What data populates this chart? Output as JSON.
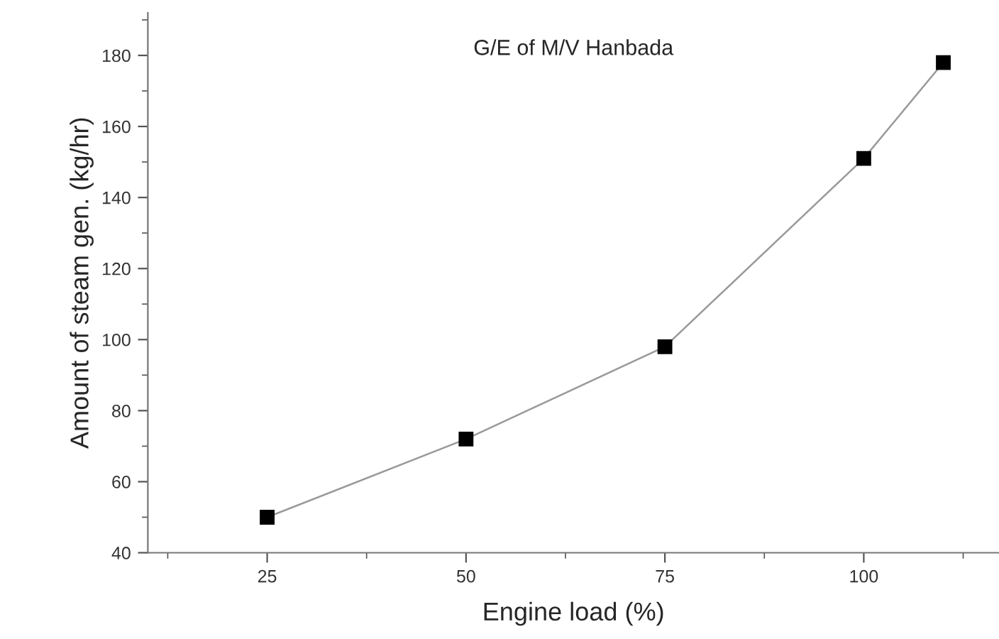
{
  "chart_data": {
    "type": "line",
    "title": "G/E of M/V Hanbada",
    "xlabel": "Engine load (%)",
    "ylabel": "Amount of steam gen. (kg/hr)",
    "x": [
      25,
      50,
      75,
      100,
      110
    ],
    "series": [
      {
        "color": "#000000",
        "values": [
          50,
          72,
          98,
          151,
          178
        ]
      }
    ],
    "marker": "square",
    "line_style": "solid",
    "xlim": [
      10,
      117
    ],
    "xticks": [
      25,
      50,
      75,
      100
    ],
    "ylim": [
      40,
      192
    ],
    "yticks": [
      40,
      60,
      80,
      100,
      120,
      140,
      160,
      180
    ],
    "grid": false,
    "legend": false
  }
}
